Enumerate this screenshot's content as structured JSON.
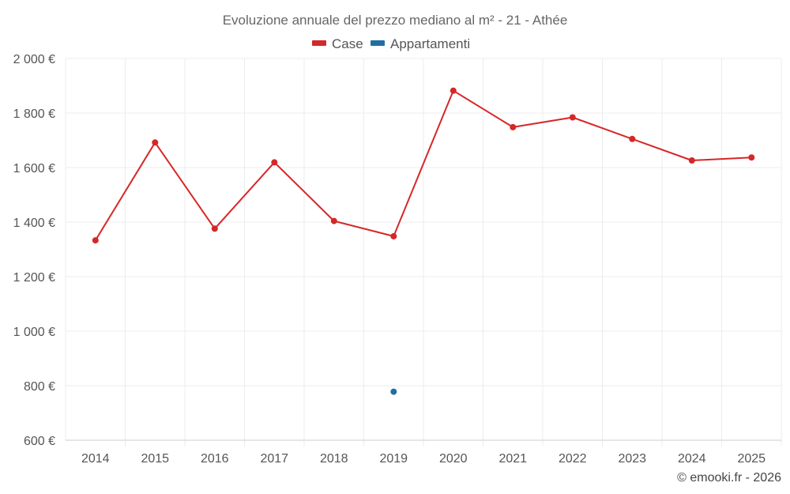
{
  "chart_data": {
    "type": "line",
    "title": "Evoluzione annuale del prezzo mediano al m² - 21 - Athée",
    "xlabel": "",
    "ylabel": "",
    "categories": [
      "2014",
      "2015",
      "2016",
      "2017",
      "2018",
      "2019",
      "2020",
      "2021",
      "2022",
      "2023",
      "2024",
      "2025"
    ],
    "ylim": [
      600,
      2000
    ],
    "yticks": [
      600,
      800,
      1000,
      1200,
      1400,
      1600,
      1800,
      2000
    ],
    "ytick_labels": [
      "600 €",
      "800 €",
      "1 000 €",
      "1 200 €",
      "1 400 €",
      "1 600 €",
      "1 800 €",
      "2 000 €"
    ],
    "grid": true,
    "legend_position": "top-center",
    "series": [
      {
        "name": "Case",
        "color": "#d62728",
        "values": [
          1333,
          1692,
          1376,
          1619,
          1404,
          1348,
          1882,
          1748,
          1784,
          1705,
          1626,
          1637
        ]
      },
      {
        "name": "Appartamenti",
        "color": "#1f6fa5",
        "values": [
          null,
          null,
          null,
          null,
          null,
          778,
          null,
          null,
          null,
          null,
          null,
          null
        ]
      }
    ],
    "credit": "© emooki.fr - 2026"
  }
}
